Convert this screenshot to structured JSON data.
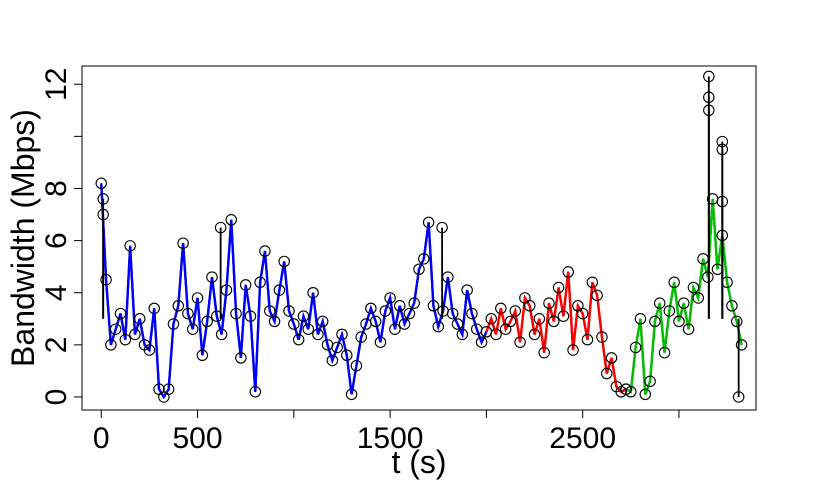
{
  "chart_data": {
    "type": "line",
    "title": "",
    "xlabel": "t (s)",
    "ylabel": "Bandwidth (Mbps)",
    "xlim": [
      -100,
      3400
    ],
    "ylim": [
      -0.5,
      12.7
    ],
    "x_ticks": [
      0,
      500,
      1000,
      1500,
      2000,
      2500,
      3000
    ],
    "x_tick_labels": [
      "0",
      "500",
      "",
      "1500",
      "",
      "2500",
      ""
    ],
    "y_ticks": [
      0,
      2,
      4,
      6,
      8,
      10,
      12
    ],
    "y_tick_labels": [
      "0",
      "2",
      "4",
      "6",
      "8",
      "",
      "12"
    ],
    "grid": false,
    "legend": "none",
    "marker": "open-circle",
    "marker_color": "#000000",
    "series": [
      {
        "color": "#0000ff",
        "x": [
          0,
          25,
          50,
          75,
          100,
          125,
          150,
          175,
          200,
          225,
          250,
          275,
          300,
          325,
          350,
          375,
          400,
          425,
          450,
          475,
          500,
          525,
          550,
          575,
          600,
          625,
          650,
          675,
          700,
          725,
          750,
          775,
          800,
          825,
          850,
          875,
          900,
          925,
          950,
          975,
          1000,
          1025,
          1050,
          1075,
          1100,
          1125,
          1150,
          1175,
          1200,
          1225,
          1250,
          1275,
          1300,
          1325,
          1350,
          1375,
          1400,
          1425,
          1450,
          1475,
          1500,
          1525,
          1550,
          1575,
          1600,
          1625,
          1650,
          1675,
          1700,
          1725,
          1750,
          1775,
          1800,
          1825,
          1850,
          1875,
          1900,
          1925,
          1950,
          1975,
          2000
        ],
        "y": [
          8.2,
          4.5,
          2.0,
          2.6,
          3.2,
          2.2,
          5.8,
          2.4,
          3.0,
          2.0,
          1.8,
          3.4,
          0.3,
          0.0,
          0.3,
          2.8,
          3.5,
          5.9,
          3.2,
          2.6,
          3.8,
          1.6,
          2.9,
          4.6,
          3.1,
          2.4,
          4.1,
          6.8,
          3.2,
          1.5,
          4.3,
          3.1,
          0.2,
          4.4,
          5.6,
          3.3,
          2.9,
          4.1,
          5.2,
          3.3,
          2.8,
          2.2,
          3.1,
          2.6,
          4.0,
          2.4,
          2.9,
          2.0,
          1.4,
          1.9,
          2.4,
          1.6,
          0.1,
          1.2,
          2.3,
          2.8,
          3.4,
          2.9,
          2.1,
          3.3,
          3.8,
          2.6,
          3.5,
          2.8,
          3.2,
          3.6,
          4.9,
          5.3,
          6.7,
          3.5,
          2.7,
          3.3,
          4.6,
          3.2,
          2.8,
          2.4,
          4.1,
          3.2,
          2.6,
          2.1,
          2.5
        ]
      },
      {
        "color": "#ff0000",
        "x": [
          2000,
          2025,
          2050,
          2075,
          2100,
          2125,
          2150,
          2175,
          2200,
          2225,
          2250,
          2275,
          2300,
          2325,
          2350,
          2375,
          2400,
          2425,
          2450,
          2475,
          2500,
          2525,
          2550,
          2575,
          2600,
          2625,
          2650,
          2675,
          2700,
          2725
        ],
        "y": [
          2.5,
          3.0,
          2.4,
          3.4,
          2.6,
          2.9,
          3.3,
          2.1,
          3.8,
          3.5,
          2.4,
          3.0,
          1.7,
          3.6,
          2.9,
          4.2,
          3.1,
          4.8,
          1.8,
          3.5,
          3.2,
          2.2,
          4.4,
          3.9,
          2.3,
          0.9,
          1.5,
          0.4,
          0.2,
          0.3
        ]
      },
      {
        "color": "#00c000",
        "x": [
          2725,
          2750,
          2775,
          2800,
          2825,
          2850,
          2875,
          2900,
          2925,
          2950,
          2975,
          3000,
          3025,
          3050,
          3075,
          3100,
          3125,
          3150,
          3175,
          3200,
          3225,
          3250,
          3275,
          3300,
          3325
        ],
        "y": [
          0.3,
          0.2,
          1.9,
          3.0,
          0.1,
          0.6,
          2.9,
          3.6,
          1.7,
          3.3,
          4.4,
          2.9,
          3.6,
          2.6,
          4.2,
          3.8,
          5.3,
          4.6,
          7.6,
          4.9,
          6.2,
          4.4,
          3.5,
          2.9,
          2.0
        ]
      }
    ],
    "spikes": [
      {
        "x": 3155,
        "y": 12.3
      },
      {
        "x": 3155,
        "y": 11.5
      },
      {
        "x": 3155,
        "y": 11.0
      },
      {
        "x": 3225,
        "y": 9.8
      },
      {
        "x": 3225,
        "y": 9.5
      },
      {
        "x": 3225,
        "y": 7.5
      },
      {
        "x": 3310,
        "y": 0.0
      },
      {
        "x": 10,
        "y": 7.0
      },
      {
        "x": 10,
        "y": 7.6
      },
      {
        "x": 620,
        "y": 6.5
      },
      {
        "x": 1770,
        "y": 6.5
      }
    ]
  }
}
